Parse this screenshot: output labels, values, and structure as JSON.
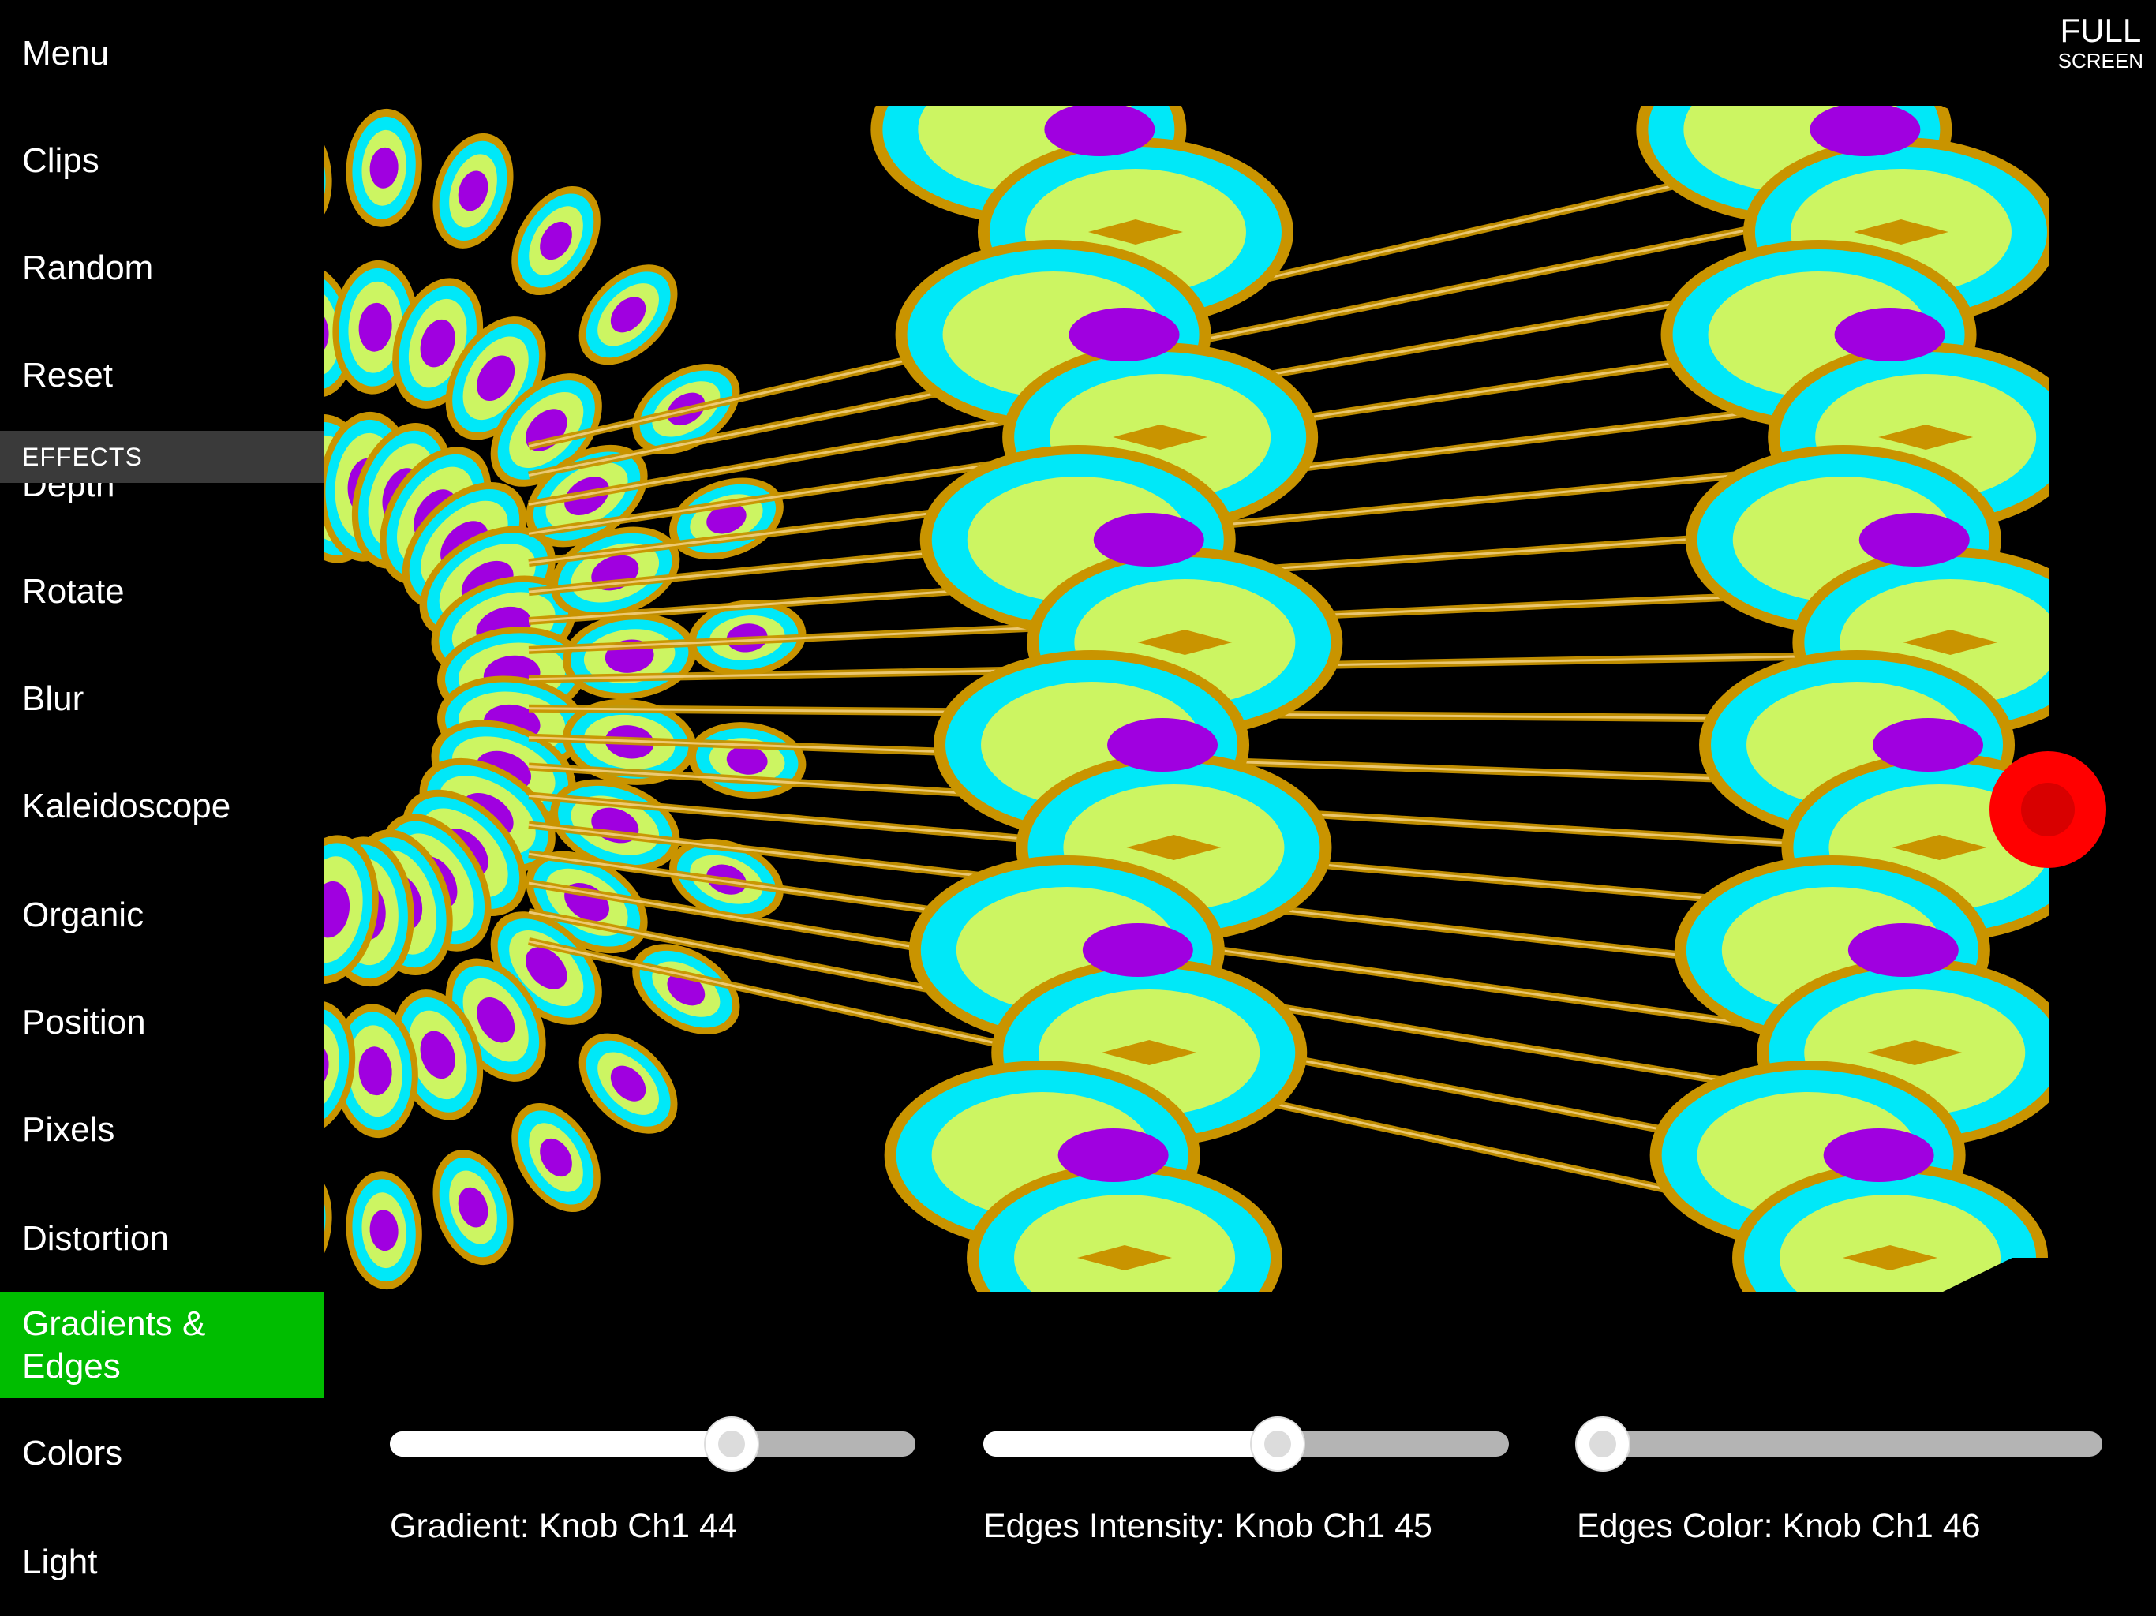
{
  "sidebar": {
    "top_items": [
      {
        "label": "Menu"
      },
      {
        "label": "Clips"
      },
      {
        "label": "Random"
      },
      {
        "label": "Reset"
      }
    ],
    "section_header": "EFFECTS",
    "partially_hidden_item": "Depth",
    "effect_items": [
      {
        "label": "Rotate"
      },
      {
        "label": "Blur"
      },
      {
        "label": "Kaleidoscope"
      },
      {
        "label": "Organic"
      },
      {
        "label": "Position"
      },
      {
        "label": "Pixels"
      },
      {
        "label": "Distortion"
      },
      {
        "label": "Gradients &\nEdges",
        "active": true
      },
      {
        "label": "Colors"
      },
      {
        "label": "Light"
      }
    ],
    "active_color": "#00bd00"
  },
  "fullscreen": {
    "line1": "FULL",
    "line2": "SCREEN"
  },
  "sliders": [
    {
      "label": "Gradient: Knob Ch1 44",
      "value": 0.65
    },
    {
      "label": "Edges Intensity: Knob Ch1 45",
      "value": 0.56
    },
    {
      "label": "Edges Color: Knob Ch1 46",
      "value": 0.05
    }
  ],
  "colors": {
    "lime": "#ccf562",
    "cyan": "#00e8f8",
    "purple": "#a000e0",
    "gold": "#c99400",
    "record": "#ff0000"
  }
}
